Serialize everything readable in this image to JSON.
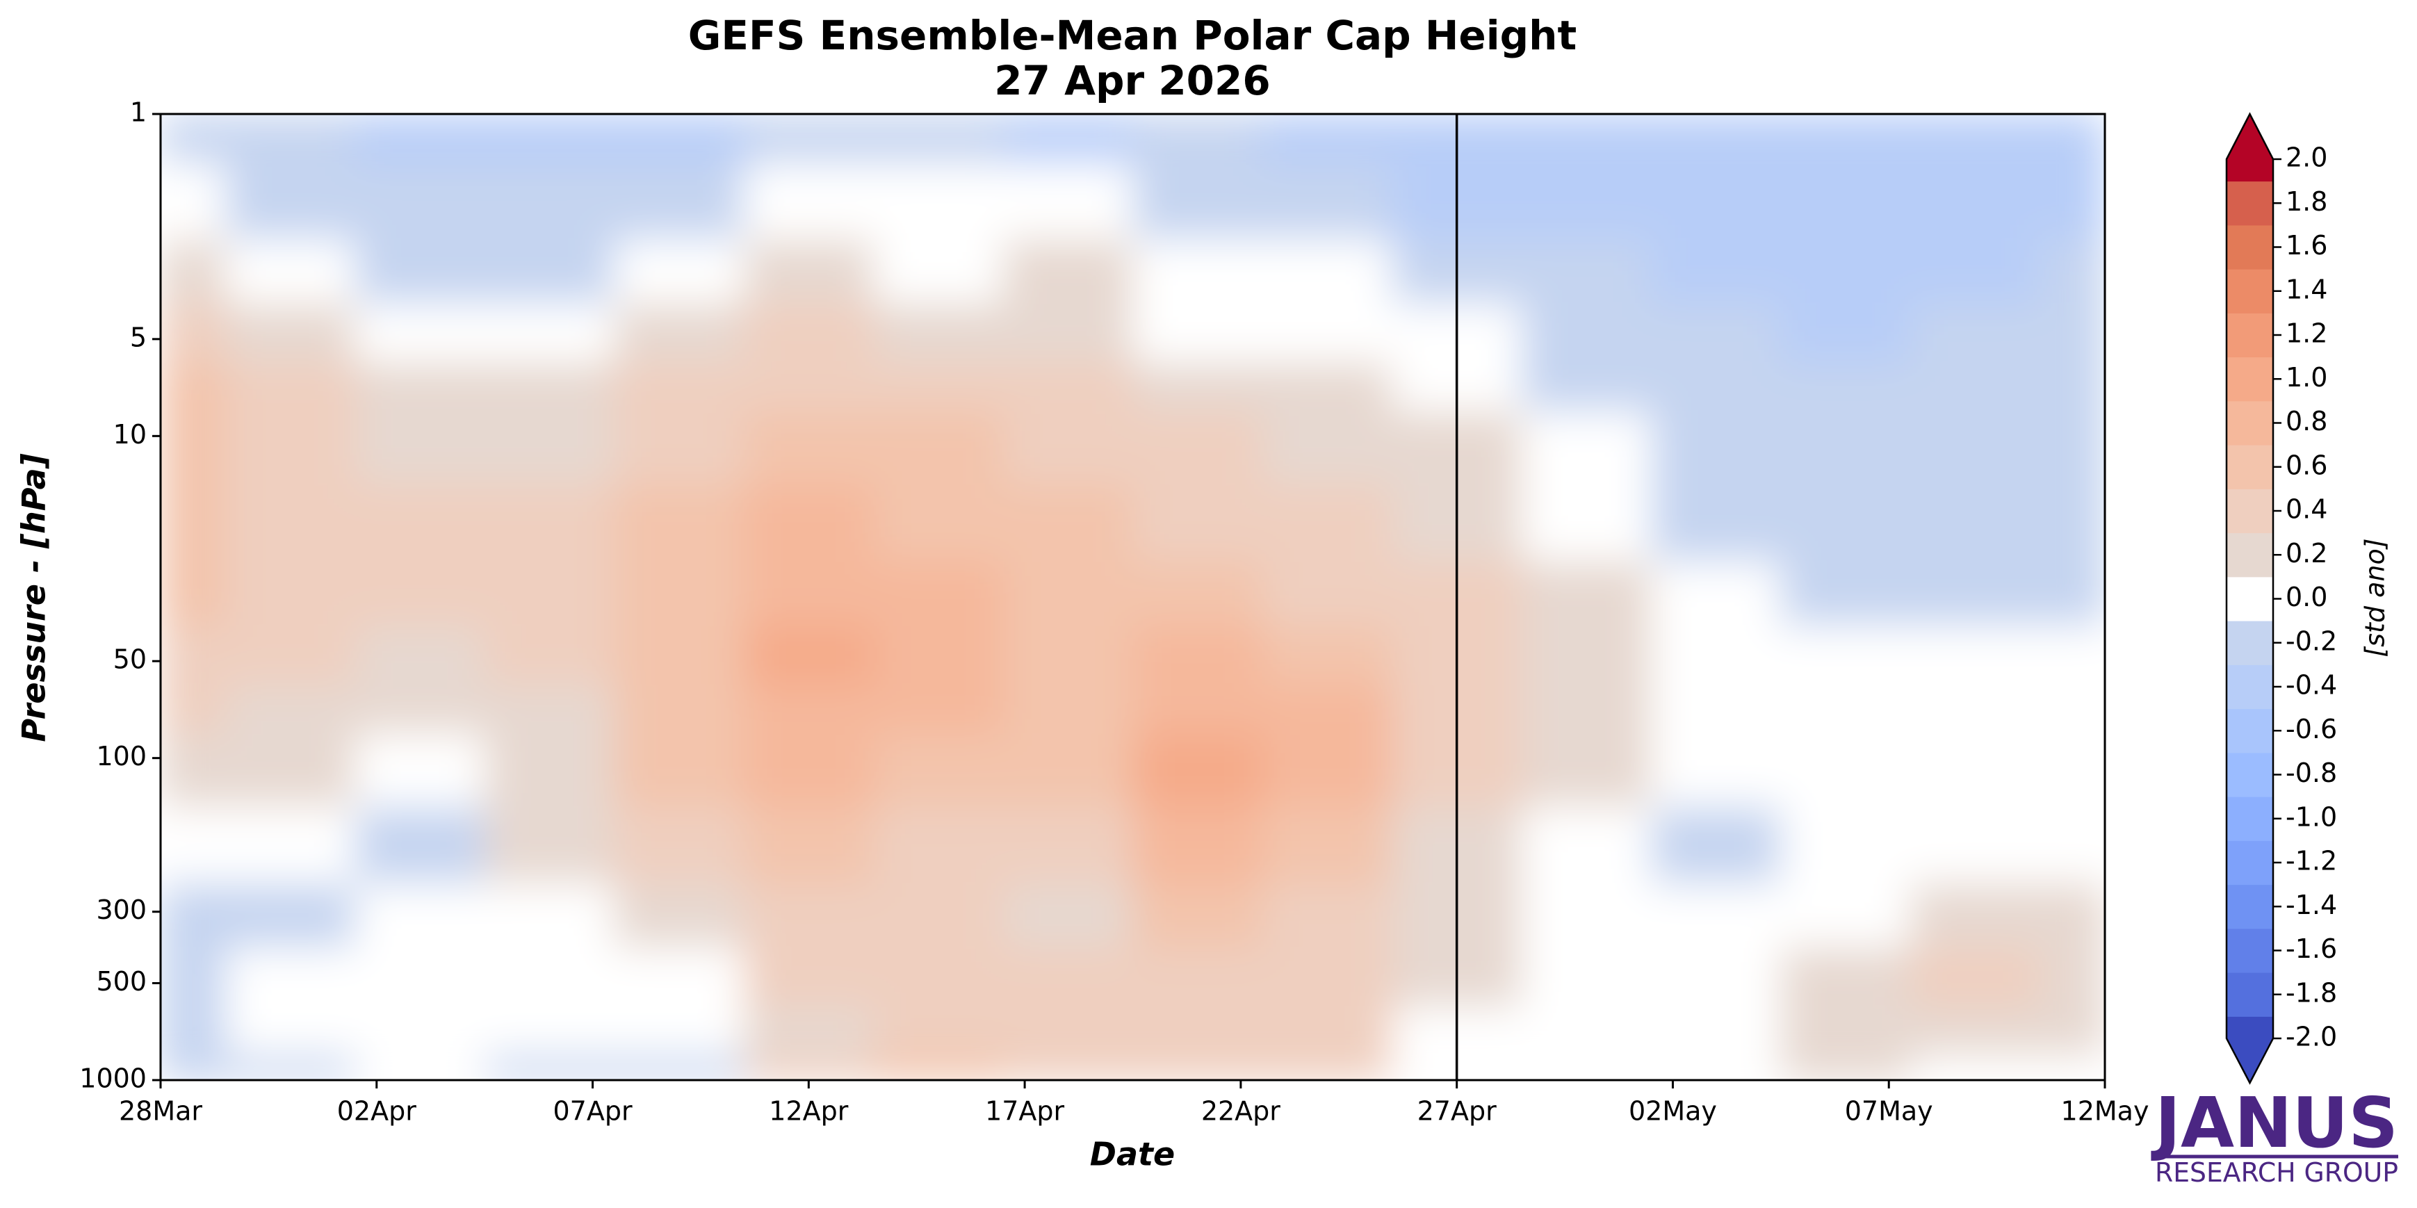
{
  "chart_data": {
    "type": "contour",
    "title": "GEFS Ensemble-Mean Polar Cap Height",
    "subtitle": "27 Apr 2026",
    "x_label": "Date",
    "y_label": "Pressure - [hPa]",
    "x": [
      "2026-03-28",
      "2026-03-31",
      "2026-04-03",
      "2026-04-06",
      "2026-04-09",
      "2026-04-12",
      "2026-04-15",
      "2026-04-18",
      "2026-04-21",
      "2026-04-24",
      "2026-04-27",
      "2026-04-30",
      "2026-05-03",
      "2026-05-06",
      "2026-05-09",
      "2026-05-12"
    ],
    "y": [
      1,
      2,
      3,
      5,
      7,
      10,
      20,
      30,
      50,
      70,
      100,
      200,
      300,
      500,
      700,
      1000
    ],
    "values": [
      [
        -0.25,
        -0.3,
        -0.5,
        -0.5,
        -0.4,
        -0.3,
        -0.3,
        -0.4,
        -0.3,
        -0.4,
        -0.5,
        -0.5,
        -0.5,
        -0.5,
        -0.45,
        -0.4
      ],
      [
        0.05,
        -0.15,
        -0.25,
        -0.3,
        -0.2,
        -0.1,
        -0.1,
        -0.1,
        -0.15,
        -0.2,
        -0.35,
        -0.4,
        -0.45,
        -0.5,
        -0.4,
        -0.35
      ],
      [
        0.25,
        0.05,
        -0.12,
        -0.2,
        0.0,
        0.1,
        0.05,
        0.1,
        0.0,
        0.0,
        -0.2,
        -0.3,
        -0.35,
        -0.4,
        -0.35,
        -0.3
      ],
      [
        0.35,
        0.2,
        0.0,
        0.0,
        0.15,
        0.3,
        0.25,
        0.25,
        0.05,
        0.05,
        -0.05,
        -0.25,
        -0.3,
        -0.35,
        -0.3,
        -0.3
      ],
      [
        0.5,
        0.35,
        0.1,
        0.1,
        0.3,
        0.45,
        0.35,
        0.3,
        0.2,
        0.15,
        0.0,
        -0.15,
        -0.25,
        -0.3,
        -0.3,
        -0.3
      ],
      [
        0.5,
        0.45,
        0.25,
        0.2,
        0.4,
        0.55,
        0.5,
        0.4,
        0.3,
        0.25,
        0.15,
        -0.05,
        -0.2,
        -0.25,
        -0.25,
        -0.25
      ],
      [
        0.6,
        0.45,
        0.35,
        0.3,
        0.55,
        0.7,
        0.65,
        0.5,
        0.45,
        0.35,
        0.25,
        0.05,
        -0.15,
        -0.2,
        -0.2,
        -0.2
      ],
      [
        0.55,
        0.45,
        0.3,
        0.35,
        0.6,
        0.85,
        0.75,
        0.55,
        0.55,
        0.45,
        0.3,
        0.15,
        -0.1,
        -0.15,
        -0.15,
        -0.15
      ],
      [
        0.4,
        0.35,
        0.2,
        0.3,
        0.6,
        0.9,
        0.85,
        0.6,
        0.7,
        0.6,
        0.35,
        0.25,
        0.0,
        -0.05,
        -0.1,
        -0.1
      ],
      [
        0.3,
        0.2,
        0.1,
        0.25,
        0.55,
        0.85,
        0.75,
        0.6,
        0.85,
        0.7,
        0.3,
        0.2,
        0.0,
        0.0,
        0.0,
        0.0
      ],
      [
        0.25,
        0.12,
        0.0,
        0.2,
        0.5,
        0.75,
        0.65,
        0.55,
        0.9,
        0.75,
        0.3,
        0.1,
        0.0,
        0.0,
        0.0,
        0.0
      ],
      [
        0.05,
        -0.1,
        -0.15,
        0.1,
        0.35,
        0.5,
        0.45,
        0.4,
        0.7,
        0.6,
        0.25,
        0.0,
        -0.15,
        0.0,
        0.0,
        0.05
      ],
      [
        -0.15,
        -0.15,
        -0.1,
        0.0,
        0.2,
        0.4,
        0.3,
        0.25,
        0.5,
        0.45,
        0.15,
        0.0,
        0.0,
        0.05,
        0.2,
        0.15
      ],
      [
        -0.15,
        0.0,
        0.0,
        0.0,
        0.05,
        0.3,
        0.3,
        0.3,
        0.45,
        0.4,
        0.1,
        0.0,
        0.0,
        0.2,
        0.3,
        0.2
      ],
      [
        -0.2,
        0.0,
        0.05,
        -0.1,
        -0.05,
        0.25,
        0.35,
        0.3,
        0.4,
        0.4,
        0.0,
        0.0,
        0.0,
        0.25,
        0.25,
        0.15
      ],
      [
        -0.3,
        -0.2,
        0.0,
        -0.2,
        -0.25,
        0.3,
        0.5,
        0.3,
        0.4,
        0.45,
        0.0,
        -0.05,
        -0.05,
        0.1,
        0.05,
        -0.1
      ]
    ],
    "xlim": [
      "2026-03-28",
      "2026-05-12"
    ],
    "xticks": [
      {
        "value": "2026-03-28",
        "label": "28Mar"
      },
      {
        "value": "2026-04-02",
        "label": "02Apr"
      },
      {
        "value": "2026-04-07",
        "label": "07Apr"
      },
      {
        "value": "2026-04-12",
        "label": "12Apr"
      },
      {
        "value": "2026-04-17",
        "label": "17Apr"
      },
      {
        "value": "2026-04-22",
        "label": "22Apr"
      },
      {
        "value": "2026-04-27",
        "label": "27Apr"
      },
      {
        "value": "2026-05-02",
        "label": "02May"
      },
      {
        "value": "2026-05-07",
        "label": "07May"
      },
      {
        "value": "2026-05-12",
        "label": "12May"
      }
    ],
    "ylim": [
      1000,
      1
    ],
    "yticks": [
      1,
      5,
      10,
      50,
      100,
      300,
      500,
      1000
    ],
    "ylog": true,
    "vline": "2026-04-27",
    "levels": [
      -1.9,
      -1.7,
      -1.5,
      -1.3,
      -1.1,
      -0.9,
      -0.7,
      -0.5,
      -0.3,
      -0.1,
      0.1,
      0.3,
      0.5,
      0.7,
      0.9,
      1.1,
      1.3,
      1.5,
      1.7,
      1.9
    ],
    "colors": [
      "#3b4cc0",
      "#5470de",
      "#6180e9",
      "#6f92f3",
      "#7ea1fa",
      "#8caffe",
      "#9bbcff",
      "#a9c5fc",
      "#b7cdf8",
      "#c5d4f0",
      "#ffffff",
      "#e6d8d0",
      "#efcfbf",
      "#f3c4ac",
      "#f5b89b",
      "#f5aa89",
      "#f29b78",
      "#ec8b67",
      "#e27a57",
      "#d6604d",
      "#b40426"
    ],
    "clim": [
      -2,
      2
    ],
    "cbar_ticks": [
      {
        "value": 2,
        "label": "2.0"
      },
      1.8,
      1.6,
      1.4,
      1.2,
      {
        "value": 1,
        "label": "1.0"
      },
      0.8,
      0.6,
      0.4,
      0.2,
      {
        "value": 0,
        "label": "0.0"
      },
      -0.2,
      -0.4,
      -0.6,
      -0.8,
      {
        "value": -1,
        "label": "-1.0"
      },
      -1.2,
      -1.4,
      -1.6,
      -1.8,
      {
        "value": -2,
        "label": "-2.0"
      }
    ],
    "cbar_label": "[std ano]"
  },
  "logo": {
    "name": "JANUS",
    "subtitle": "RESEARCH GROUP"
  }
}
